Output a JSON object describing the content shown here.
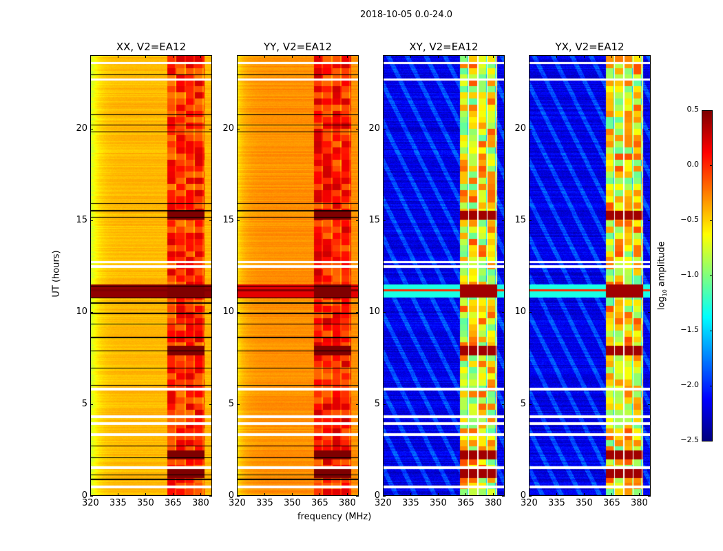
{
  "figure_title": "2018-10-05 0.0-24.0",
  "chart_data": {
    "type": "heatmap",
    "xlabel": "frequency (MHz)",
    "ylabel": "UT (hours)",
    "xlim": [
      320,
      386.4
    ],
    "ylim": [
      0,
      24
    ],
    "xticks": [
      "320",
      "335",
      "350",
      "365",
      "380"
    ],
    "xtick_values": [
      320,
      335,
      350,
      365,
      380
    ],
    "yticks": [
      "0",
      "5",
      "10",
      "15",
      "20"
    ],
    "ytick_values": [
      0,
      5,
      10,
      15,
      20
    ],
    "colorbar": {
      "label_prefix": "log",
      "label_sub": "10",
      "label_suffix": " amplitude",
      "colormap": "jet",
      "range": [
        -2.5,
        0.5
      ],
      "ticks": [
        "0.5",
        "0.0",
        "−0.5",
        "−1.0",
        "−1.5",
        "−2.0",
        "−2.5"
      ],
      "tick_values": [
        0.5,
        0.0,
        -0.5,
        -1.0,
        -1.5,
        -2.0,
        -2.5
      ]
    },
    "rfi_band_mhz": [
      362,
      382.5
    ],
    "flagged_hours": [
      23.6,
      22.7,
      12.73,
      12.5,
      5.8,
      4.3,
      3.9,
      3.3,
      1.5,
      0.45
    ],
    "black_line_hours": [
      22.96,
      20.79,
      20.22,
      19.85,
      15.92,
      15.54,
      15.17,
      11.42,
      10.79,
      10.49,
      9.93,
      9.36,
      8.61,
      7.87,
      6.93,
      5.99,
      2.7,
      2.06,
      1.12,
      0.86
    ],
    "strong_hours": [
      15.3,
      11.1,
      7.9,
      2.2,
      1.2
    ],
    "panels": [
      {
        "title": "XX, V2=EA12",
        "base": -0.42,
        "edge": -0.8,
        "rfi": 0.0,
        "peak": 0.5,
        "band": 0.45,
        "black_lines": true
      },
      {
        "title": "YY, V2=EA12",
        "base": -0.3,
        "edge": -0.55,
        "rfi": 0.05,
        "peak": 0.5,
        "band": 0.2,
        "black_lines": true
      },
      {
        "title": "XY, V2=EA12",
        "base": -2.2,
        "edge": -2.2,
        "rfi": -0.6,
        "peak": 0.4,
        "band": -1.3,
        "black_lines": false
      },
      {
        "title": "YX, V2=EA12",
        "base": -2.2,
        "edge": -2.2,
        "rfi": -0.6,
        "peak": 0.4,
        "band": -1.3,
        "black_lines": false
      }
    ]
  }
}
